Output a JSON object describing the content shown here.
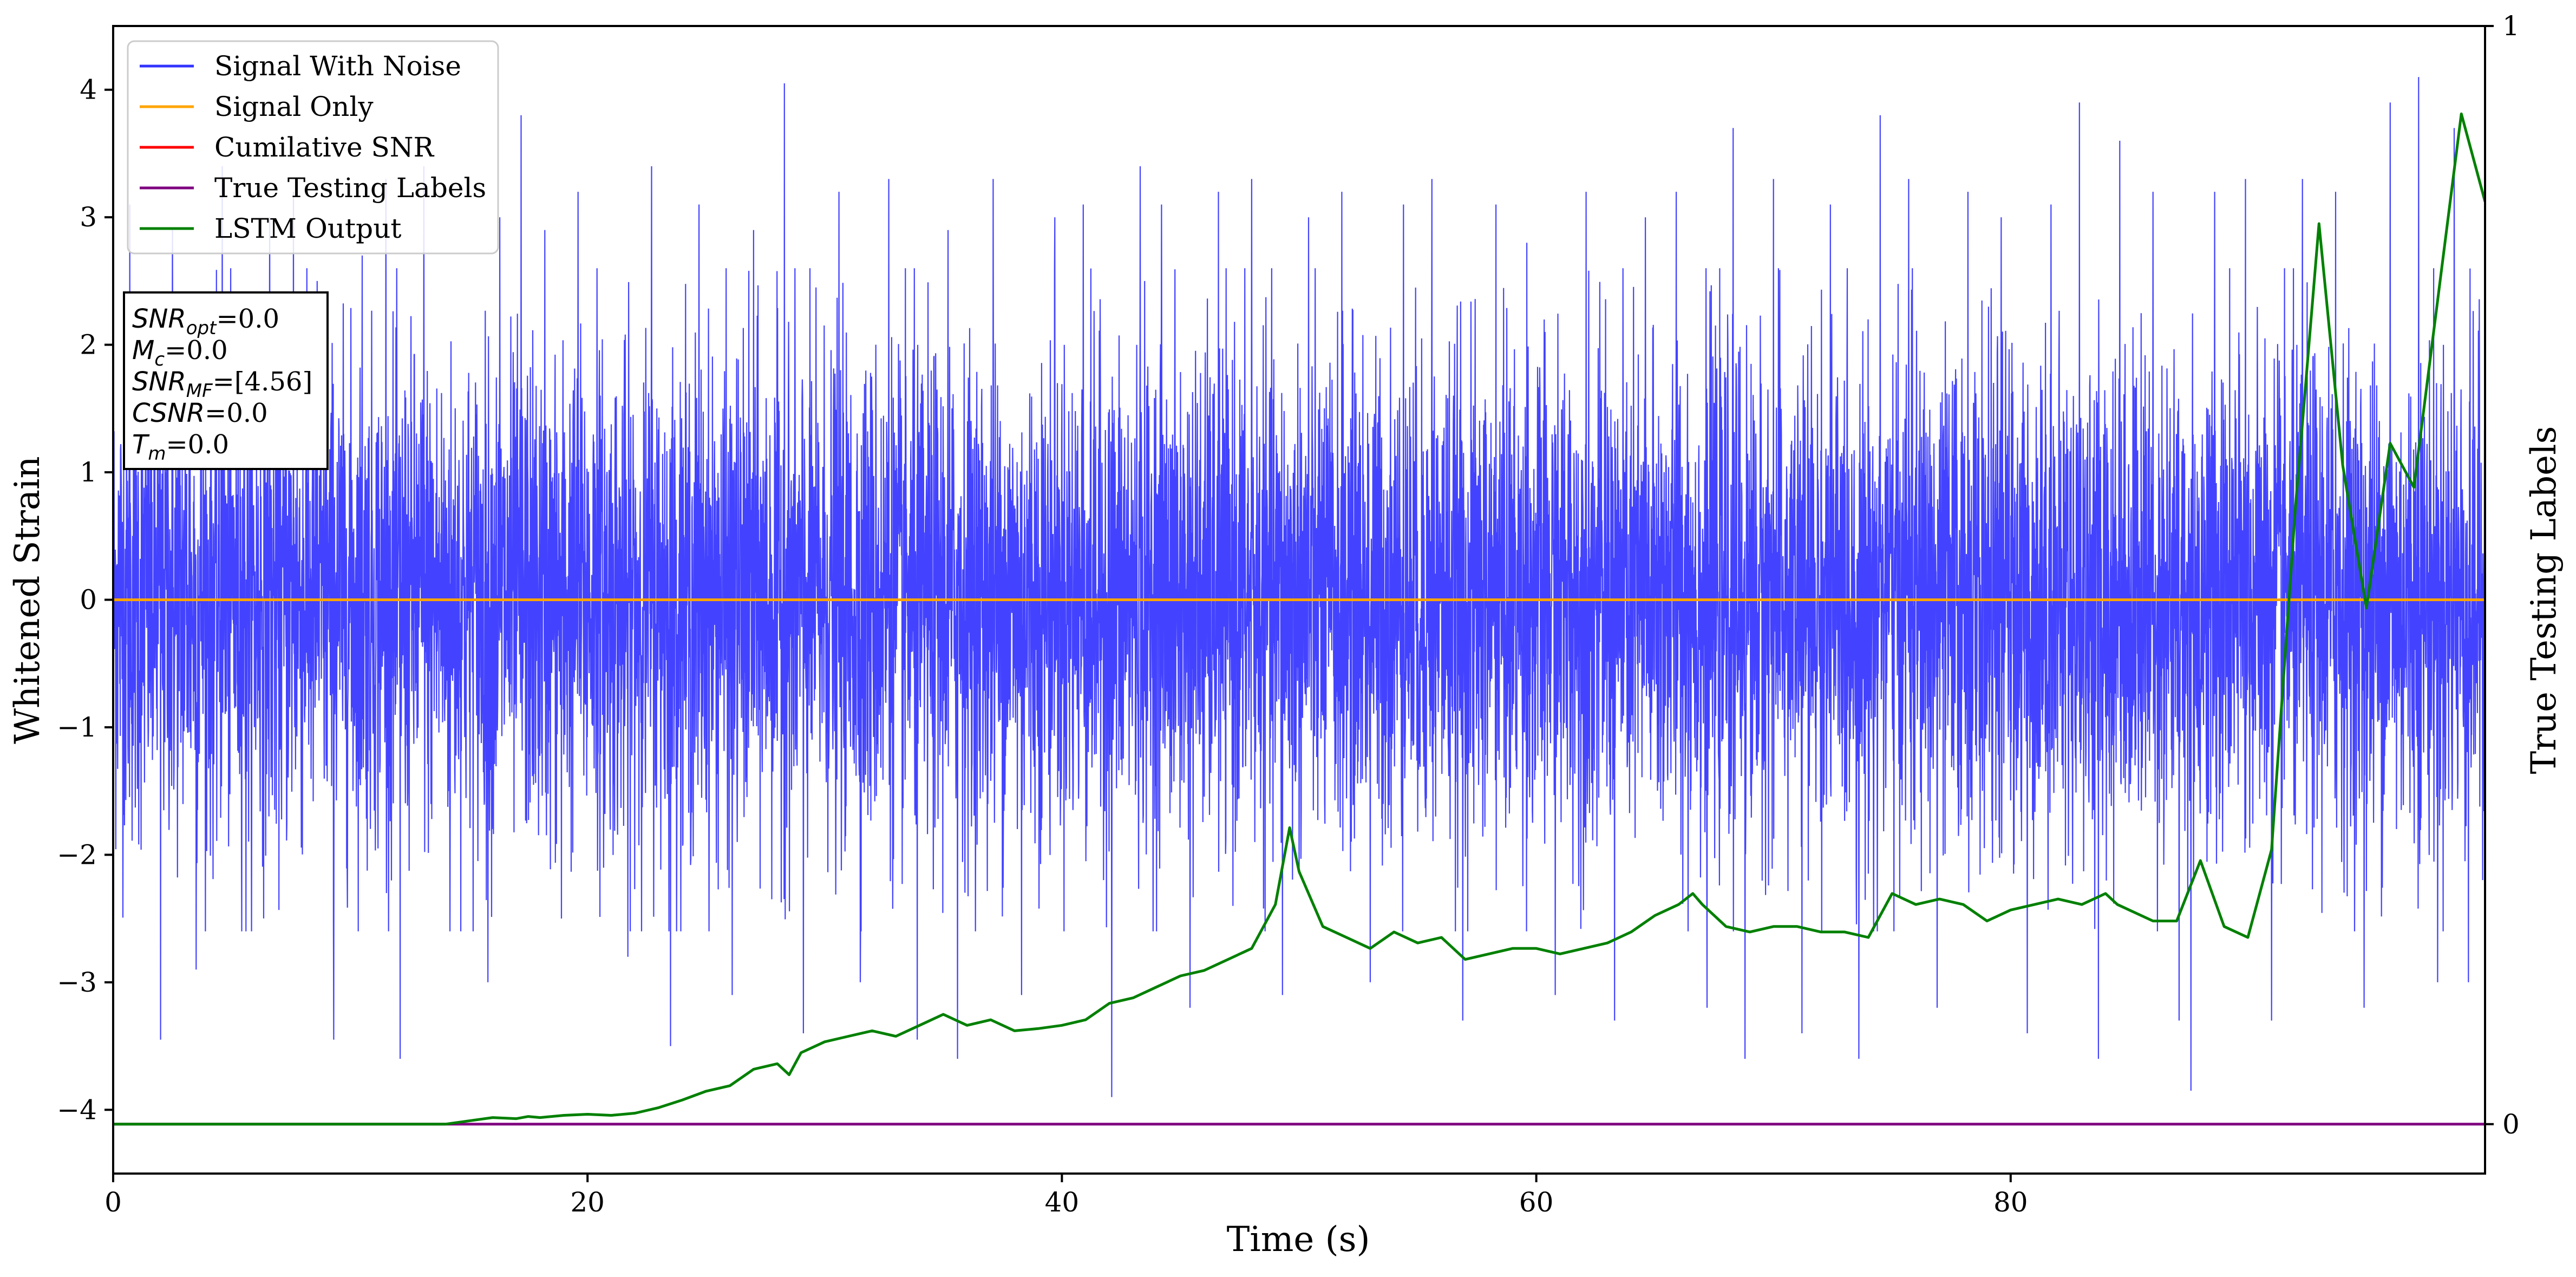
{
  "chart_data": {
    "type": "line",
    "xlabel": "Time (s)",
    "ylabel": "Whitened Strain",
    "y2label": "True Testing Labels",
    "xlim": [
      0,
      100
    ],
    "ylim": [
      -4.5,
      4.5
    ],
    "y2lim": [
      -0.045,
      1.0
    ],
    "xticks": [
      0,
      20,
      40,
      60,
      80
    ],
    "yticks": [
      -4,
      -3,
      -2,
      -1,
      0,
      1,
      2,
      3,
      4
    ],
    "y2ticks": [
      0,
      1
    ],
    "xtick_labels": [
      "0",
      "20",
      "40",
      "60",
      "80"
    ],
    "ytick_labels": [
      "−4",
      "−3",
      "−2",
      "−1",
      "0",
      "1",
      "2",
      "3",
      "4"
    ],
    "y2tick_labels": [
      "0",
      "1"
    ],
    "legend_position": "upper-left",
    "grid": false,
    "legend": [
      {
        "name": "Signal With Noise",
        "color": "#3333ff"
      },
      {
        "name": "Signal Only",
        "color": "#ffa500"
      },
      {
        "name": "Cumilative SNR",
        "color": "#ff0000"
      },
      {
        "name": "True Testing Labels",
        "color": "#800080"
      },
      {
        "name": "LSTM Output",
        "color": "#008000"
      }
    ],
    "annotation_box": [
      {
        "symbol": "SNR",
        "sub": "opt",
        "value": "=0.0"
      },
      {
        "symbol": "M",
        "sub": "c",
        "value": "=0.0"
      },
      {
        "symbol": "SNR",
        "sub": "MF",
        "value": "=[4.56]"
      },
      {
        "symbol": "CSNR",
        "sub": "",
        "value": "=0.0"
      },
      {
        "symbol": "T",
        "sub": "m",
        "value": "=0.0"
      }
    ],
    "series": [
      {
        "name": "Signal With Noise",
        "axis": "left",
        "color": "#3333ff",
        "description": "dense white noise, roughly between -4 and +4, sampled over 0-100 s",
        "spikes": [
          [
            0.7,
            3.1
          ],
          [
            2.0,
            -3.45
          ],
          [
            2.5,
            2.9
          ],
          [
            3.5,
            -2.9
          ],
          [
            4.6,
            3.4
          ],
          [
            5.6,
            -2.6
          ],
          [
            6.6,
            3.0
          ],
          [
            7.6,
            3.2
          ],
          [
            8.6,
            2.5
          ],
          [
            9.3,
            -3.45
          ],
          [
            10.5,
            2.7
          ],
          [
            11.5,
            3.3
          ],
          [
            12.1,
            -3.6
          ],
          [
            13.1,
            3.4
          ],
          [
            14.2,
            -2.6
          ],
          [
            15.8,
            -3.0
          ],
          [
            16.3,
            3.0
          ],
          [
            17.2,
            3.8
          ],
          [
            18.2,
            2.9
          ],
          [
            18.9,
            -2.5
          ],
          [
            19.6,
            3.2
          ],
          [
            20.4,
            2.6
          ],
          [
            21.7,
            -2.8
          ],
          [
            22.7,
            3.4
          ],
          [
            23.5,
            -3.5
          ],
          [
            24.7,
            3.1
          ],
          [
            26.1,
            -3.1
          ],
          [
            27.0,
            2.9
          ],
          [
            28.3,
            4.05
          ],
          [
            29.1,
            -3.4
          ],
          [
            30.6,
            3.2
          ],
          [
            31.5,
            -3.0
          ],
          [
            32.7,
            3.3
          ],
          [
            33.9,
            -3.45
          ],
          [
            35.2,
            2.9
          ],
          [
            35.6,
            -3.6
          ],
          [
            37.1,
            3.3
          ],
          [
            38.3,
            -3.1
          ],
          [
            39.7,
            3.0
          ],
          [
            40.9,
            3.1
          ],
          [
            42.1,
            -3.9
          ],
          [
            43.3,
            3.4
          ],
          [
            44.2,
            3.1
          ],
          [
            45.4,
            -3.2
          ],
          [
            46.6,
            3.2
          ],
          [
            48.0,
            3.3
          ],
          [
            49.3,
            -3.1
          ],
          [
            50.4,
            3.0
          ],
          [
            51.8,
            3.2
          ],
          [
            53.0,
            -3.0
          ],
          [
            54.4,
            3.1
          ],
          [
            55.6,
            3.3
          ],
          [
            56.9,
            -3.3
          ],
          [
            58.3,
            3.1
          ],
          [
            59.6,
            2.8
          ],
          [
            60.8,
            -3.1
          ],
          [
            62.1,
            3.2
          ],
          [
            63.3,
            -3.3
          ],
          [
            64.6,
            3.0
          ],
          [
            65.9,
            3.2
          ],
          [
            67.2,
            -3.2
          ],
          [
            68.3,
            3.7
          ],
          [
            68.8,
            -3.6
          ],
          [
            70.0,
            3.3
          ],
          [
            71.2,
            -3.4
          ],
          [
            72.4,
            3.1
          ],
          [
            73.6,
            -3.6
          ],
          [
            74.5,
            3.8
          ],
          [
            75.7,
            3.3
          ],
          [
            76.9,
            -3.2
          ],
          [
            78.2,
            3.2
          ],
          [
            79.6,
            3.0
          ],
          [
            80.7,
            -3.4
          ],
          [
            81.7,
            3.1
          ],
          [
            82.9,
            3.9
          ],
          [
            83.7,
            -3.6
          ],
          [
            84.6,
            3.6
          ],
          [
            86.0,
            3.2
          ],
          [
            87.1,
            -3.3
          ],
          [
            87.6,
            -3.85
          ],
          [
            88.6,
            3.2
          ],
          [
            89.9,
            3.3
          ],
          [
            91.0,
            -3.3
          ],
          [
            92.3,
            3.3
          ],
          [
            93.7,
            3.2
          ],
          [
            94.9,
            -3.2
          ],
          [
            96.0,
            3.9
          ],
          [
            97.2,
            4.1
          ],
          [
            98.0,
            -3.0
          ],
          [
            98.7,
            3.7
          ],
          [
            99.3,
            -3.0
          ]
        ]
      },
      {
        "name": "Signal Only",
        "axis": "left",
        "color": "#ffa500",
        "x": [
          0,
          100
        ],
        "y": [
          0,
          0
        ]
      },
      {
        "name": "Cumilative SNR",
        "axis": "left",
        "color": "#ff0000",
        "x": [
          0,
          100
        ],
        "y": [
          0,
          0
        ]
      },
      {
        "name": "True Testing Labels",
        "axis": "right",
        "color": "#800080",
        "x": [
          0,
          100
        ],
        "y": [
          0,
          0
        ]
      },
      {
        "name": "LSTM Output",
        "axis": "right",
        "color": "#008000",
        "x": [
          0,
          14,
          15,
          16,
          17,
          17.5,
          18,
          19,
          20,
          21,
          22,
          23,
          24,
          25,
          26,
          27,
          28,
          28.5,
          29,
          30,
          31,
          32,
          33,
          34,
          35,
          36,
          37,
          38,
          39,
          40,
          41,
          42,
          43,
          44,
          45,
          46,
          47,
          48,
          49,
          49.6,
          50,
          51,
          52,
          53,
          54,
          55,
          56,
          57,
          58,
          59,
          60,
          61,
          62,
          63,
          64,
          65,
          66,
          66.6,
          67,
          68,
          69,
          70,
          71,
          72,
          73,
          74,
          75,
          76,
          77,
          78,
          79,
          80,
          81,
          82,
          83,
          84,
          84.5,
          85,
          86,
          87,
          88,
          89,
          90,
          91,
          92,
          93,
          94,
          95,
          96,
          97,
          98,
          99,
          100
        ],
        "y": [
          0,
          0.0,
          0.003,
          0.006,
          0.005,
          0.007,
          0.006,
          0.008,
          0.009,
          0.008,
          0.01,
          0.015,
          0.022,
          0.03,
          0.035,
          0.05,
          0.055,
          0.045,
          0.065,
          0.075,
          0.08,
          0.085,
          0.08,
          0.09,
          0.1,
          0.09,
          0.095,
          0.085,
          0.087,
          0.09,
          0.095,
          0.11,
          0.115,
          0.125,
          0.135,
          0.14,
          0.15,
          0.16,
          0.2,
          0.27,
          0.23,
          0.18,
          0.17,
          0.16,
          0.175,
          0.165,
          0.17,
          0.15,
          0.155,
          0.16,
          0.16,
          0.155,
          0.16,
          0.165,
          0.175,
          0.19,
          0.2,
          0.21,
          0.2,
          0.18,
          0.175,
          0.18,
          0.18,
          0.175,
          0.175,
          0.17,
          0.21,
          0.2,
          0.205,
          0.2,
          0.185,
          0.195,
          0.2,
          0.205,
          0.2,
          0.21,
          0.2,
          0.195,
          0.185,
          0.185,
          0.24,
          0.18,
          0.17,
          0.25,
          0.56,
          0.82,
          0.6,
          0.47,
          0.62,
          0.58,
          0.75,
          0.92,
          0.84
        ]
      }
    ]
  }
}
